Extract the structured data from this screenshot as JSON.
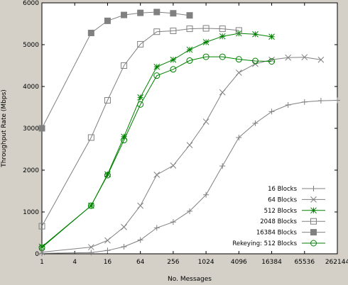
{
  "chart_data": {
    "type": "line",
    "title": "",
    "xlabel": "No. Messages",
    "ylabel": "Throughput Rate (Mbps)",
    "x_scale": "log2",
    "xlim": [
      1,
      262144
    ],
    "ylim": [
      0,
      6000
    ],
    "grid": false,
    "legend_position": "bottom-right",
    "x_ticks": [
      1,
      4,
      16,
      64,
      256,
      1024,
      4096,
      16384,
      65536,
      262144
    ],
    "x_tick_labels": [
      "1",
      "4",
      "16",
      "64",
      "256",
      "1024",
      "4096",
      "16384",
      "65536",
      "262144"
    ],
    "y_ticks": [
      0,
      1000,
      2000,
      3000,
      4000,
      5000,
      6000
    ],
    "y_tick_labels": [
      "0",
      "1000",
      "2000",
      "3000",
      "4000",
      "5000",
      "6000"
    ],
    "series": [
      {
        "name": "16 Blocks",
        "marker": "plus",
        "color": "#808080",
        "x": [
          1,
          8,
          16,
          32,
          64,
          128,
          256,
          512,
          1024,
          2048,
          4096,
          8192,
          16384,
          32768,
          65536,
          131072,
          262144
        ],
        "y": [
          10,
          30,
          80,
          170,
          330,
          620,
          760,
          1020,
          1410,
          2100,
          2780,
          3120,
          3400,
          3560,
          3630,
          3660,
          3670
        ]
      },
      {
        "name": "64 Blocks",
        "marker": "cross",
        "color": "#808080",
        "x": [
          1,
          8,
          16,
          32,
          64,
          128,
          256,
          512,
          1024,
          2048,
          4096,
          8192,
          16384,
          32768,
          65536,
          131072
        ],
        "y": [
          40,
          160,
          320,
          640,
          1150,
          1890,
          2110,
          2600,
          3160,
          3860,
          4330,
          4540,
          4640,
          4690,
          4700,
          4640
        ]
      },
      {
        "name": "512 Blocks",
        "marker": "star",
        "color": "#008000",
        "x": [
          1,
          8,
          16,
          32,
          64,
          128,
          256,
          512,
          1024,
          2048,
          4096,
          8192,
          16384
        ],
        "y": [
          170,
          1150,
          1900,
          2800,
          3740,
          4470,
          4640,
          4880,
          5060,
          5200,
          5270,
          5250,
          5190
        ]
      },
      {
        "name": "2048 Blocks",
        "marker": "square",
        "color": "#808080",
        "x": [
          1,
          8,
          16,
          32,
          64,
          128,
          256,
          512,
          1024,
          2048,
          4096
        ],
        "y": [
          660,
          2780,
          3670,
          4500,
          5010,
          5310,
          5330,
          5380,
          5390,
          5380,
          5340
        ]
      },
      {
        "name": "16384 Blocks",
        "marker": "filled-square",
        "color": "#808080",
        "x": [
          1,
          8,
          16,
          32,
          64,
          128,
          256,
          512
        ],
        "y": [
          3000,
          5280,
          5570,
          5710,
          5760,
          5780,
          5750,
          5700
        ]
      },
      {
        "name": "Rekeying: 512 Blocks",
        "marker": "circle",
        "color": "#008000",
        "x": [
          1,
          8,
          16,
          32,
          64,
          128,
          256,
          512,
          1024,
          2048,
          4096,
          8192,
          16384
        ],
        "y": [
          150,
          1150,
          1880,
          2720,
          3570,
          4260,
          4410,
          4620,
          4710,
          4710,
          4650,
          4610,
          4600
        ]
      }
    ]
  }
}
